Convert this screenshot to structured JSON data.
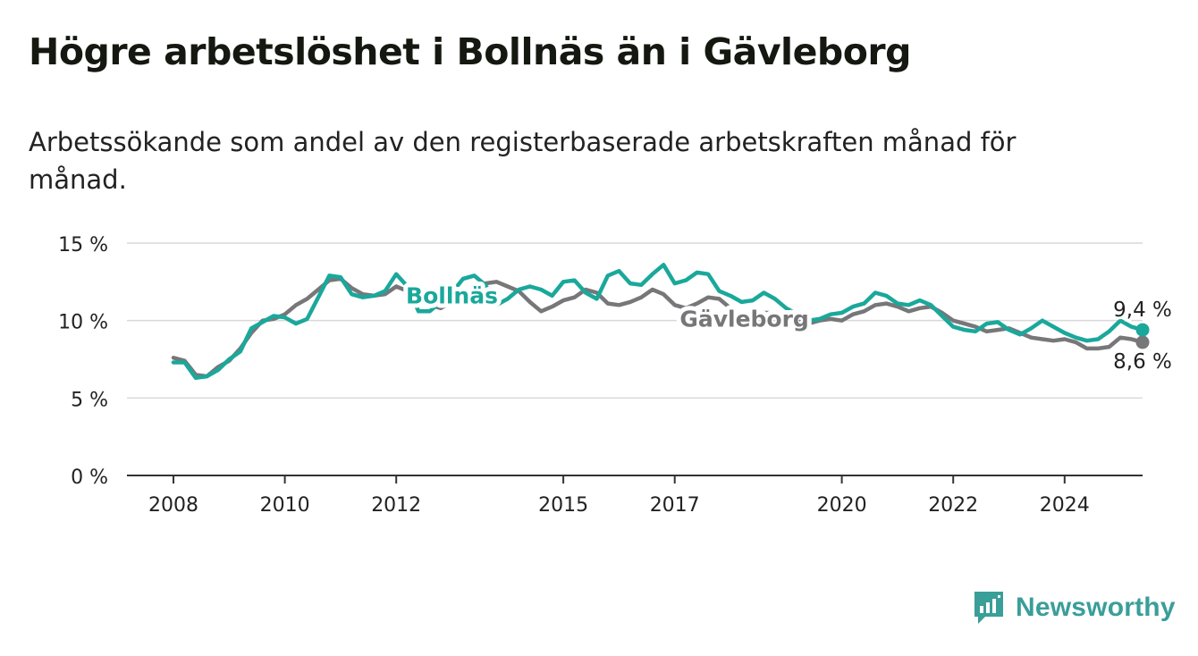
{
  "title": "Högre arbetslöshet i Bollnäs än i Gävleborg",
  "subtitle": "Arbetssökande som andel av den registerbaserade arbetskraften månad för månad.",
  "brand": {
    "name": "Newsworthy",
    "icon": "newsworthy-logo-icon",
    "color": "#3a9e99"
  },
  "colors": {
    "bollnas": "#1aa89b",
    "gavleborg": "#77777a",
    "grid": "#d9d9d9",
    "axis": "#333333"
  },
  "chart_data": {
    "type": "line",
    "xlabel": "",
    "ylabel": "",
    "ylim": [
      0,
      15
    ],
    "xlim": [
      2008,
      2025.5
    ],
    "grid": true,
    "yticks": [
      {
        "value": 0,
        "label": "0 %"
      },
      {
        "value": 5,
        "label": "5 %"
      },
      {
        "value": 10,
        "label": "10 %"
      },
      {
        "value": 15,
        "label": "15 %"
      }
    ],
    "xticks": [
      {
        "value": 2008,
        "label": "2008"
      },
      {
        "value": 2010,
        "label": "2010"
      },
      {
        "value": 2012,
        "label": "2012"
      },
      {
        "value": 2015,
        "label": "2015"
      },
      {
        "value": 2017,
        "label": "2017"
      },
      {
        "value": 2020,
        "label": "2020"
      },
      {
        "value": 2022,
        "label": "2022"
      },
      {
        "value": 2024,
        "label": "2024"
      }
    ],
    "series": [
      {
        "name": "Gävleborg",
        "key": "gavleborg",
        "end_label": "8,6 %",
        "points": [
          [
            2008.0,
            7.6
          ],
          [
            2008.2,
            7.4
          ],
          [
            2008.4,
            6.5
          ],
          [
            2008.6,
            6.4
          ],
          [
            2008.8,
            7.0
          ],
          [
            2009.0,
            7.4
          ],
          [
            2009.2,
            8.2
          ],
          [
            2009.4,
            9.2
          ],
          [
            2009.6,
            10.0
          ],
          [
            2009.8,
            10.1
          ],
          [
            2010.0,
            10.4
          ],
          [
            2010.2,
            11.0
          ],
          [
            2010.4,
            11.4
          ],
          [
            2010.6,
            12.0
          ],
          [
            2010.8,
            12.6
          ],
          [
            2011.0,
            12.7
          ],
          [
            2011.2,
            12.1
          ],
          [
            2011.4,
            11.7
          ],
          [
            2011.6,
            11.6
          ],
          [
            2011.8,
            11.7
          ],
          [
            2012.0,
            12.2
          ],
          [
            2012.2,
            11.9
          ],
          [
            2012.4,
            11.4
          ],
          [
            2012.6,
            11.0
          ],
          [
            2012.8,
            10.8
          ],
          [
            2013.0,
            11.2
          ],
          [
            2013.2,
            11.6
          ],
          [
            2013.4,
            12.0
          ],
          [
            2013.6,
            12.4
          ],
          [
            2013.8,
            12.5
          ],
          [
            2014.0,
            12.2
          ],
          [
            2014.2,
            11.9
          ],
          [
            2014.4,
            11.2
          ],
          [
            2014.6,
            10.6
          ],
          [
            2014.8,
            10.9
          ],
          [
            2015.0,
            11.3
          ],
          [
            2015.2,
            11.5
          ],
          [
            2015.4,
            12.0
          ],
          [
            2015.6,
            11.8
          ],
          [
            2015.8,
            11.1
          ],
          [
            2016.0,
            11.0
          ],
          [
            2016.2,
            11.2
          ],
          [
            2016.4,
            11.5
          ],
          [
            2016.6,
            12.0
          ],
          [
            2016.8,
            11.7
          ],
          [
            2017.0,
            11.0
          ],
          [
            2017.2,
            10.8
          ],
          [
            2017.4,
            11.1
          ],
          [
            2017.6,
            11.5
          ],
          [
            2017.8,
            11.4
          ],
          [
            2018.0,
            10.8
          ],
          [
            2018.2,
            10.3
          ],
          [
            2018.4,
            10.2
          ],
          [
            2018.6,
            10.5
          ],
          [
            2018.8,
            10.5
          ],
          [
            2019.0,
            10.3
          ],
          [
            2019.2,
            10.0
          ],
          [
            2019.4,
            9.8
          ],
          [
            2019.6,
            10.0
          ],
          [
            2019.8,
            10.1
          ],
          [
            2020.0,
            10.0
          ],
          [
            2020.2,
            10.4
          ],
          [
            2020.4,
            10.6
          ],
          [
            2020.6,
            11.0
          ],
          [
            2020.8,
            11.1
          ],
          [
            2021.0,
            10.9
          ],
          [
            2021.2,
            10.6
          ],
          [
            2021.4,
            10.8
          ],
          [
            2021.6,
            10.9
          ],
          [
            2021.8,
            10.5
          ],
          [
            2022.0,
            10.0
          ],
          [
            2022.2,
            9.8
          ],
          [
            2022.4,
            9.6
          ],
          [
            2022.6,
            9.3
          ],
          [
            2022.8,
            9.4
          ],
          [
            2023.0,
            9.5
          ],
          [
            2023.2,
            9.2
          ],
          [
            2023.4,
            8.9
          ],
          [
            2023.6,
            8.8
          ],
          [
            2023.8,
            8.7
          ],
          [
            2024.0,
            8.8
          ],
          [
            2024.2,
            8.6
          ],
          [
            2024.4,
            8.2
          ],
          [
            2024.6,
            8.2
          ],
          [
            2024.8,
            8.3
          ],
          [
            2025.0,
            8.9
          ],
          [
            2025.2,
            8.8
          ],
          [
            2025.4,
            8.6
          ]
        ]
      },
      {
        "name": "Bollnäs",
        "key": "bollnas",
        "end_label": "9,4 %",
        "points": [
          [
            2008.0,
            7.3
          ],
          [
            2008.2,
            7.3
          ],
          [
            2008.4,
            6.3
          ],
          [
            2008.6,
            6.4
          ],
          [
            2008.8,
            6.8
          ],
          [
            2009.0,
            7.5
          ],
          [
            2009.2,
            8.0
          ],
          [
            2009.4,
            9.5
          ],
          [
            2009.6,
            9.9
          ],
          [
            2009.8,
            10.3
          ],
          [
            2010.0,
            10.2
          ],
          [
            2010.2,
            9.8
          ],
          [
            2010.4,
            10.1
          ],
          [
            2010.6,
            11.5
          ],
          [
            2010.8,
            12.9
          ],
          [
            2011.0,
            12.8
          ],
          [
            2011.2,
            11.7
          ],
          [
            2011.4,
            11.5
          ],
          [
            2011.6,
            11.6
          ],
          [
            2011.8,
            11.9
          ],
          [
            2012.0,
            13.0
          ],
          [
            2012.2,
            12.2
          ],
          [
            2012.4,
            10.6
          ],
          [
            2012.6,
            10.6
          ],
          [
            2012.8,
            11.2
          ],
          [
            2013.0,
            11.8
          ],
          [
            2013.2,
            12.7
          ],
          [
            2013.4,
            12.9
          ],
          [
            2013.6,
            12.3
          ],
          [
            2013.8,
            11.0
          ],
          [
            2014.0,
            11.4
          ],
          [
            2014.2,
            12.0
          ],
          [
            2014.4,
            12.2
          ],
          [
            2014.6,
            12.0
          ],
          [
            2014.8,
            11.6
          ],
          [
            2015.0,
            12.5
          ],
          [
            2015.2,
            12.6
          ],
          [
            2015.4,
            11.8
          ],
          [
            2015.6,
            11.4
          ],
          [
            2015.8,
            12.9
          ],
          [
            2016.0,
            13.2
          ],
          [
            2016.2,
            12.4
          ],
          [
            2016.4,
            12.3
          ],
          [
            2016.6,
            13.0
          ],
          [
            2016.8,
            13.6
          ],
          [
            2017.0,
            12.4
          ],
          [
            2017.2,
            12.6
          ],
          [
            2017.4,
            13.1
          ],
          [
            2017.6,
            13.0
          ],
          [
            2017.8,
            11.9
          ],
          [
            2018.0,
            11.6
          ],
          [
            2018.2,
            11.2
          ],
          [
            2018.4,
            11.3
          ],
          [
            2018.6,
            11.8
          ],
          [
            2018.8,
            11.4
          ],
          [
            2019.0,
            10.8
          ],
          [
            2019.2,
            10.4
          ],
          [
            2019.4,
            10.0
          ],
          [
            2019.6,
            10.1
          ],
          [
            2019.8,
            10.4
          ],
          [
            2020.0,
            10.5
          ],
          [
            2020.2,
            10.9
          ],
          [
            2020.4,
            11.1
          ],
          [
            2020.6,
            11.8
          ],
          [
            2020.8,
            11.6
          ],
          [
            2021.0,
            11.1
          ],
          [
            2021.2,
            11.0
          ],
          [
            2021.4,
            11.3
          ],
          [
            2021.6,
            11.0
          ],
          [
            2021.8,
            10.3
          ],
          [
            2022.0,
            9.6
          ],
          [
            2022.2,
            9.4
          ],
          [
            2022.4,
            9.3
          ],
          [
            2022.6,
            9.8
          ],
          [
            2022.8,
            9.9
          ],
          [
            2023.0,
            9.4
          ],
          [
            2023.2,
            9.1
          ],
          [
            2023.4,
            9.5
          ],
          [
            2023.6,
            10.0
          ],
          [
            2023.8,
            9.6
          ],
          [
            2024.0,
            9.2
          ],
          [
            2024.2,
            8.9
          ],
          [
            2024.4,
            8.7
          ],
          [
            2024.6,
            8.8
          ],
          [
            2024.8,
            9.3
          ],
          [
            2025.0,
            10.0
          ],
          [
            2025.2,
            9.6
          ],
          [
            2025.4,
            9.4
          ]
        ]
      }
    ],
    "annotations": [
      {
        "text": "Bollnäs",
        "series": "bollnas",
        "x": 2013.0,
        "y": 11.1
      },
      {
        "text": "Gävleborg",
        "series": "gavleborg",
        "x": 2018.25,
        "y": 9.6
      }
    ]
  }
}
